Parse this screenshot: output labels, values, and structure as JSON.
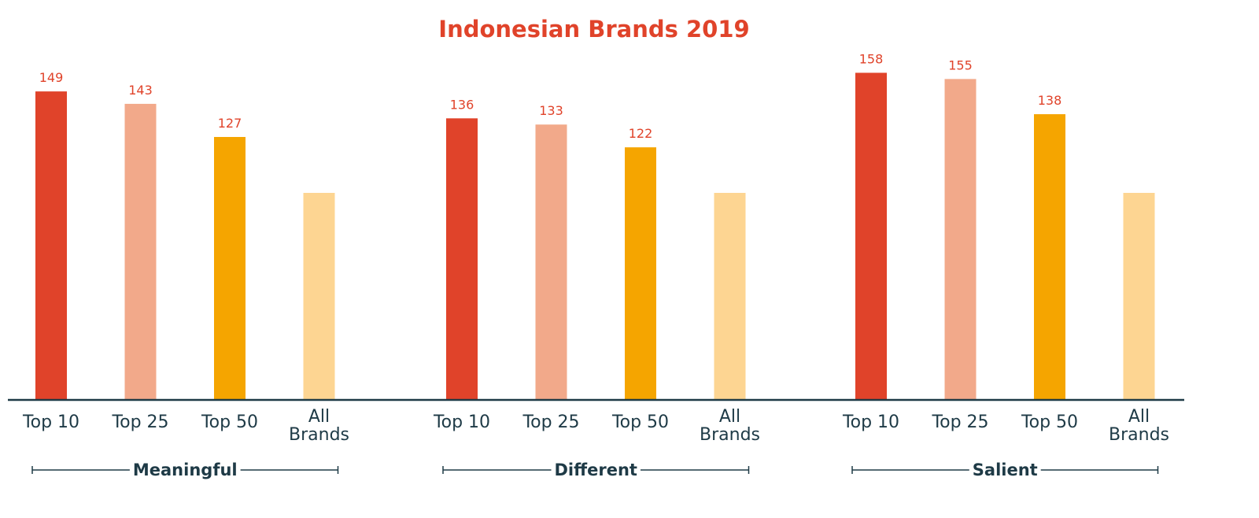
{
  "chart_data": {
    "type": "bar",
    "title": "Indonesian Brands 2019",
    "xlabel": "",
    "ylabel": "",
    "ylim": [
      0,
      165
    ],
    "grid": false,
    "categories": [
      "Top 10",
      "Top 25",
      "Top 50",
      "All Brands"
    ],
    "category_lines": [
      [
        "Top 10"
      ],
      [
        "Top 25"
      ],
      [
        "Top 50"
      ],
      [
        "All",
        "Brands"
      ]
    ],
    "groups": [
      {
        "name": "Meaningful",
        "values": [
          149,
          143,
          127,
          100
        ],
        "labels": [
          "149",
          "143",
          "127",
          ""
        ]
      },
      {
        "name": "Different",
        "values": [
          136,
          133,
          122,
          100
        ],
        "labels": [
          "136",
          "133",
          "122",
          ""
        ]
      },
      {
        "name": "Salient",
        "values": [
          158,
          155,
          138,
          100
        ],
        "labels": [
          "158",
          "155",
          "138",
          ""
        ]
      }
    ]
  },
  "colors": {
    "title": "#e0432a",
    "value_label": "#e0432a",
    "axis": "#1e3a46",
    "category_text": "#1e3a46",
    "bars": [
      "#e0432a",
      "#f2a98a",
      "#f5a500",
      "#fdd592"
    ]
  }
}
